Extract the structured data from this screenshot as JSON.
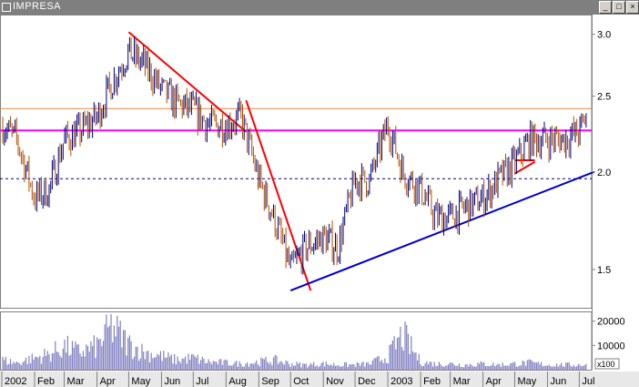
{
  "window": {
    "title": "IMPRESA",
    "buttons": [
      "minimize-button",
      "maximize-button",
      "close-button"
    ]
  },
  "chart_data": [
    {
      "type": "ohlc",
      "title": "",
      "xlabel": "",
      "ylabel": "",
      "x_tick_labels": [
        "2002",
        "Feb",
        "Mar",
        "Apr",
        "May",
        "Jun",
        "Jul",
        "Aug",
        "Sep",
        "Oct",
        "Nov",
        "Dec",
        "2003",
        "Feb",
        "Mar",
        "Apr",
        "May",
        "Jun",
        "Jul"
      ],
      "y_ticks": [
        1.5,
        2.0,
        2.5,
        3.0
      ],
      "y_tick_labels": [
        "1.5",
        "2.0",
        "2.5",
        "3.0"
      ],
      "y_scale": "log",
      "ylim": [
        1.34,
        3.18
      ],
      "grid": false,
      "series": [
        {
          "x": [
            "2002-01-01",
            "2002-01-15",
            "2002-02-01",
            "2002-02-15",
            "2002-03-01",
            "2002-03-15",
            "2002-04-01",
            "2002-04-15",
            "2002-05-01",
            "2002-05-15",
            "2002-06-01",
            "2002-06-15",
            "2002-07-01",
            "2002-07-15",
            "2002-08-01",
            "2002-08-15",
            "2002-09-01",
            "2002-09-15",
            "2002-10-01",
            "2002-10-15",
            "2002-11-01",
            "2002-11-15",
            "2002-12-01",
            "2002-12-15",
            "2003-01-01",
            "2003-01-15",
            "2003-02-01",
            "2003-02-15",
            "2003-03-01",
            "2003-03-15",
            "2003-04-01",
            "2003-04-15",
            "2003-05-01",
            "2003-05-15",
            "2003-06-01",
            "2003-06-15",
            "2003-07-01",
            "2003-07-10"
          ],
          "close": [
            2.3,
            2.2,
            1.85,
            1.9,
            2.2,
            2.25,
            2.35,
            2.6,
            2.85,
            2.75,
            2.55,
            2.45,
            2.4,
            2.3,
            2.3,
            2.35,
            1.95,
            1.75,
            1.5,
            1.6,
            1.65,
            1.6,
            1.95,
            1.95,
            2.3,
            2.0,
            1.9,
            1.75,
            1.75,
            1.8,
            1.85,
            1.95,
            2.05,
            2.2,
            2.2,
            2.2,
            2.25,
            2.4
          ]
        }
      ],
      "annotations": [
        {
          "type": "horizontal",
          "value": 2.41,
          "color": "#e8883a"
        },
        {
          "type": "horizontal",
          "value": 2.26,
          "color": "#ff00ff"
        },
        {
          "type": "horizontal",
          "value": 1.96,
          "color": "#000080",
          "style": "dashed"
        },
        {
          "type": "trendline",
          "from": [
            "2002-05-01",
            3.02
          ],
          "to": [
            "2002-08-20",
            2.25
          ],
          "color": "#ff0000"
        },
        {
          "type": "trendline",
          "from": [
            "2002-08-20",
            2.47
          ],
          "to": [
            "2002-10-20",
            1.41
          ],
          "color": "#ff0000"
        },
        {
          "type": "trendline",
          "from": [
            "2002-10-01",
            1.41
          ],
          "to": [
            "2003-07-15",
            2.0
          ],
          "color": "#0000cc"
        },
        {
          "type": "trendline",
          "from": [
            "2003-05-01",
            1.99
          ],
          "to": [
            "2003-05-20",
            2.06
          ],
          "color": "#ff0000"
        },
        {
          "type": "trendline",
          "from": [
            "2003-05-01",
            2.07
          ],
          "to": [
            "2003-05-20",
            2.07
          ],
          "color": "#ff0000"
        }
      ],
      "colors": {
        "bars": "#000080",
        "background": "#ffffff"
      }
    },
    {
      "type": "bar",
      "title": "",
      "ylabel": "",
      "y_ticks": [
        10000,
        20000
      ],
      "y_tick_labels": [
        "10000",
        "20000"
      ],
      "unit_label": "x100",
      "ylim": [
        0,
        24000
      ],
      "grid": false,
      "series": [
        {
          "x": [
            "2002-01-01",
            "2002-01-15",
            "2002-02-01",
            "2002-02-15",
            "2002-03-01",
            "2002-03-15",
            "2002-04-01",
            "2002-04-15",
            "2002-05-01",
            "2002-05-15",
            "2002-06-01",
            "2002-06-15",
            "2002-07-01",
            "2002-07-15",
            "2002-08-01",
            "2002-08-15",
            "2002-09-01",
            "2002-09-15",
            "2002-10-01",
            "2002-10-15",
            "2002-11-01",
            "2002-11-15",
            "2002-12-01",
            "2002-12-15",
            "2003-01-01",
            "2003-01-15",
            "2003-02-01",
            "2003-02-15",
            "2003-03-01",
            "2003-03-15",
            "2003-04-01",
            "2003-04-15",
            "2003-05-01",
            "2003-05-15",
            "2003-06-01",
            "2003-06-15",
            "2003-07-01",
            "2003-07-10"
          ],
          "values": [
            5000,
            3500,
            6000,
            8000,
            12000,
            9000,
            12000,
            22000,
            13000,
            9000,
            7000,
            5000,
            6000,
            4000,
            3500,
            3000,
            4000,
            5000,
            3000,
            2500,
            3000,
            2500,
            2500,
            3000,
            7000,
            18000,
            4000,
            3000,
            3000,
            2500,
            3000,
            2500,
            3000,
            3500,
            2500,
            2500,
            2500,
            3000
          ]
        }
      ],
      "colors": {
        "bars": "#8080c0"
      }
    }
  ]
}
